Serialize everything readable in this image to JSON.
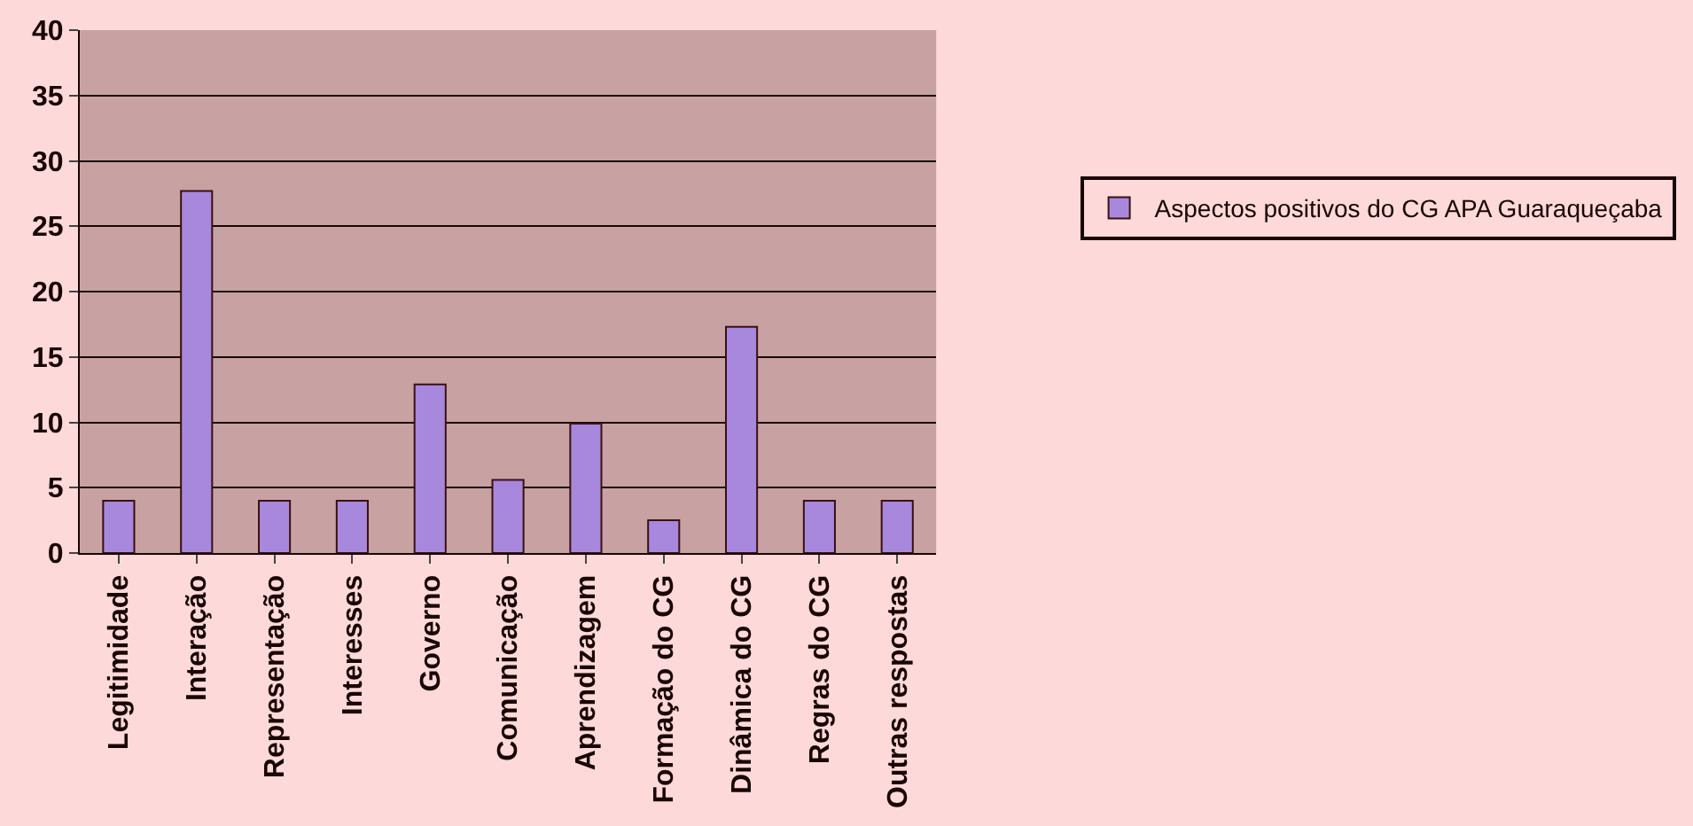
{
  "chart_data": {
    "type": "bar",
    "categories": [
      "Legitimidade",
      "Interação",
      "Representação",
      "Interesses",
      "Governo",
      "Comunicação",
      "Aprendizagem",
      "Formação do CG",
      "Dinâmica do CG",
      "Regras do CG",
      "Outras respostas"
    ],
    "series": [
      {
        "name": "Aspectos positivos do CG APA Guaraqueçaba",
        "color": "#a788dd",
        "values": [
          4,
          27.7,
          4,
          4,
          12.9,
          5.6,
          9.9,
          2.5,
          17.3,
          4,
          4
        ]
      }
    ],
    "ylim": [
      0,
      40
    ],
    "yticks": [
      0,
      5,
      10,
      15,
      20,
      25,
      30,
      35,
      40
    ],
    "grid": "y",
    "legend": "right"
  }
}
